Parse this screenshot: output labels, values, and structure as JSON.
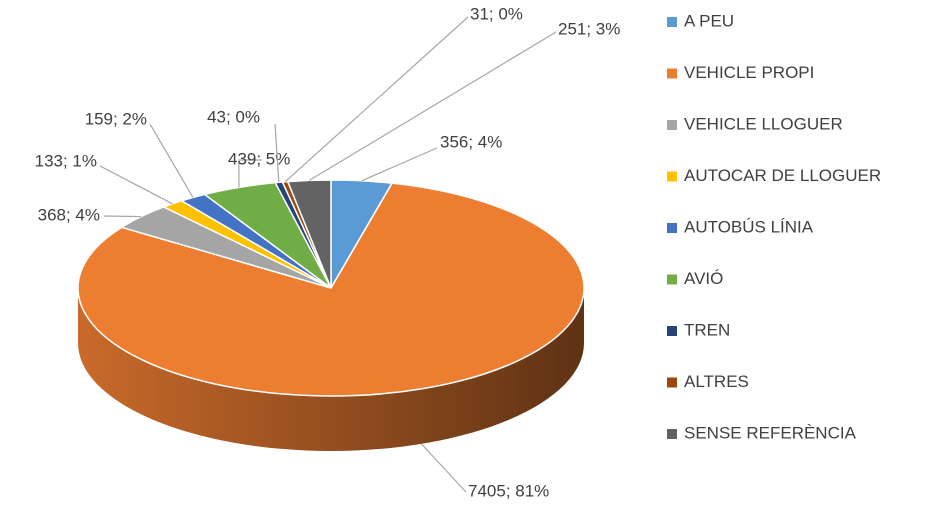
{
  "chart_data": {
    "type": "pie",
    "categories": [
      "A PEU",
      "VEHICLE PROPI",
      "VEHICLE LLOGUER",
      "AUTOCAR DE LLOGUER",
      "AUTOBÚS LÍNIA",
      "AVIÓ",
      "TREN",
      "ALTRES",
      "SENSE REFERÈNCIA"
    ],
    "values": [
      356,
      7405,
      368,
      133,
      159,
      439,
      43,
      31,
      251
    ],
    "value_labels": [
      "356; 4%",
      "7405; 81%",
      "368; 4%",
      "133; 1%",
      "159; 2%",
      "439; 5%",
      "43; 0%",
      "31; 0%",
      "251; 3%"
    ],
    "colors": [
      "#5b9bd5",
      "#ed7d31",
      "#a5a5a5",
      "#ffc000",
      "#4472c4",
      "#70ad47",
      "#264478",
      "#9e480e",
      "#636363"
    ],
    "legend": "right"
  }
}
